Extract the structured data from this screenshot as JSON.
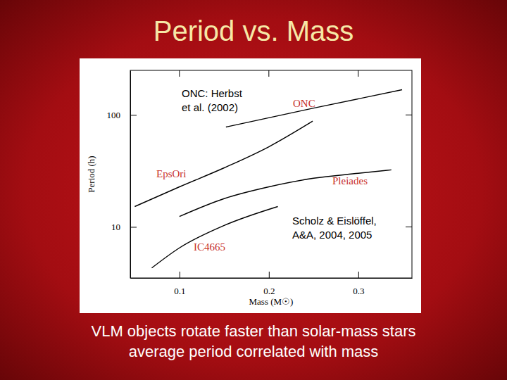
{
  "chart_data": {
    "type": "line",
    "title": "Period vs. Mass",
    "x_label": "Mass (M☉)",
    "y_label": "Period (h)",
    "log": "y",
    "xlim": [
      0.045,
      0.36
    ],
    "ylim": [
      3.5,
      250
    ],
    "xticks": [
      0.1,
      0.2,
      0.3
    ],
    "yticks": [
      10,
      100
    ],
    "series": [
      {
        "name": "ONC",
        "color": "#000000",
        "x": [
          0.152,
          0.25,
          0.349
        ],
        "values": [
          78,
          115,
          168
        ]
      },
      {
        "name": "EpsOri",
        "color": "#000000",
        "x": [
          0.05,
          0.1,
          0.15,
          0.2,
          0.249
        ],
        "values": [
          15.2,
          22.8,
          33.7,
          52,
          88
        ]
      },
      {
        "name": "Pleiades",
        "color": "#000000",
        "x": [
          0.1,
          0.15,
          0.2,
          0.25,
          0.3,
          0.337
        ],
        "values": [
          12.4,
          17.9,
          22.8,
          27.2,
          30.1,
          32.3
        ]
      },
      {
        "name": "IC4665",
        "color": "#000000",
        "x": [
          0.069,
          0.1,
          0.15,
          0.21
        ],
        "values": [
          4.3,
          6.5,
          10.3,
          15.2
        ]
      }
    ],
    "annotations": [
      [
        "ONC: Herbst",
        "et al. (2002)"
      ],
      [
        "Scholz & Eislöffel,",
        "A&A, 2004, 2005"
      ]
    ],
    "caption": [
      "VLM objects rotate faster than solar-mass stars",
      "average period correlated with mass"
    ]
  }
}
